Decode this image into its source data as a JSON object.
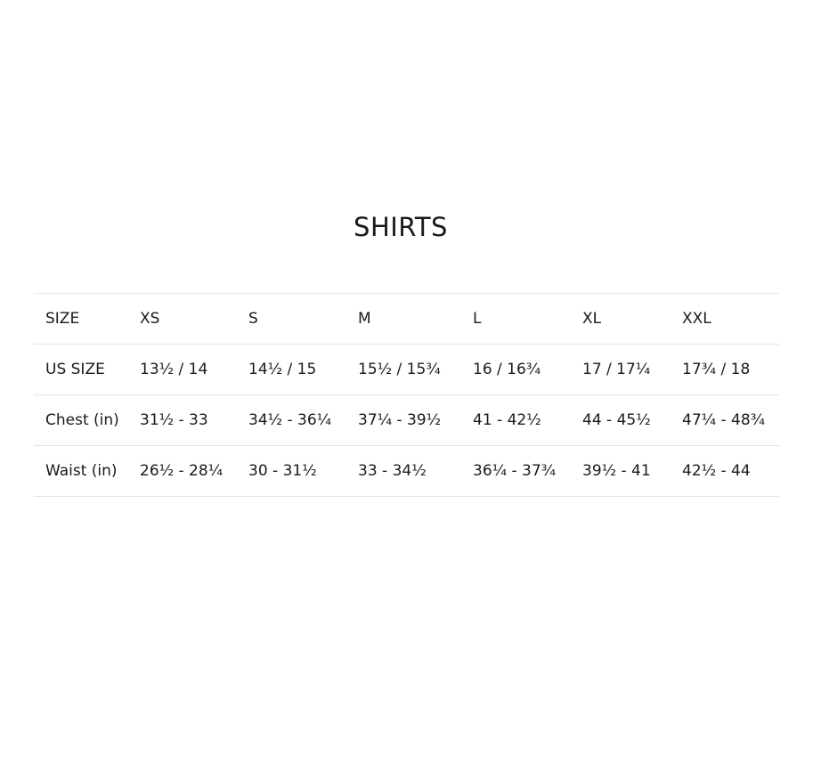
{
  "title": "SHIRTS",
  "table": {
    "rows": [
      [
        "SIZE",
        "XS",
        "S",
        "M",
        "L",
        "XL",
        "XXL"
      ],
      [
        "US SIZE",
        "13½ / 14",
        "14½ / 15",
        "15½ / 15¾",
        "16 / 16¾",
        "17 / 17¼",
        "17¾ / 18"
      ],
      [
        "Chest (in)",
        "31½ - 33",
        "34½ - 36¼",
        "37¼ - 39½",
        "41 - 42½",
        "44 - 45½",
        "47¼ - 48¾"
      ],
      [
        "Waist (in)",
        "26½ - 28¼",
        "30 - 31½",
        "33 - 34½",
        "36¼ - 37¾",
        "39½ - 41",
        "42½ - 44"
      ]
    ]
  }
}
